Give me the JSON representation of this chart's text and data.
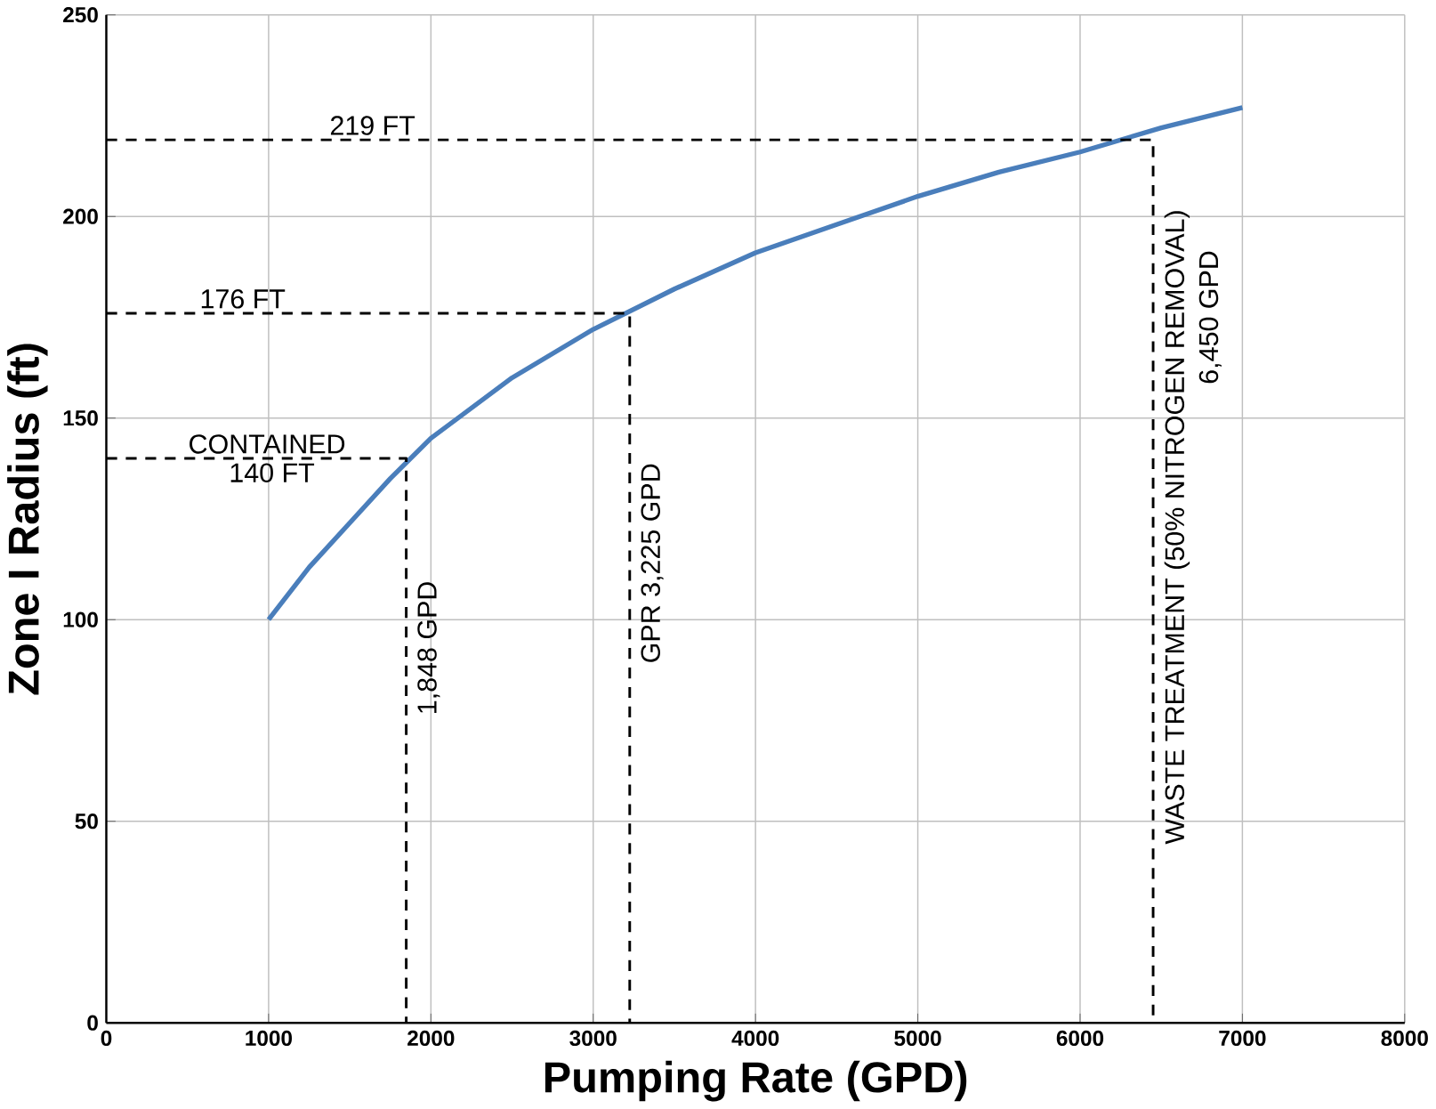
{
  "chart_data": {
    "type": "line",
    "xlabel": "Pumping Rate (GPD)",
    "ylabel": "Zone I Radius (ft)",
    "xlim": [
      0,
      8000
    ],
    "xticks": [
      0,
      1000,
      2000,
      3000,
      4000,
      5000,
      6000,
      7000,
      8000
    ],
    "ylim": [
      0,
      250
    ],
    "yticks": [
      0,
      50,
      100,
      150,
      200,
      250
    ],
    "grid": true,
    "series": [
      {
        "color": "#4a7ebb",
        "line_style": "solid",
        "x": [
          1000,
          1250,
          1500,
          1750,
          2000,
          2500,
          3000,
          3500,
          4000,
          4500,
          5000,
          5500,
          6000,
          6500,
          7000
        ],
        "values": [
          100,
          113,
          124,
          135,
          145,
          160,
          172,
          182,
          191,
          198,
          205,
          211,
          216,
          222,
          227
        ]
      },
      {
        "color": "#000000",
        "line_style": "dashed",
        "x": [
          0,
          1848,
          1848
        ],
        "values": [
          140,
          140,
          0
        ]
      },
      {
        "color": "#000000",
        "line_style": "dashed",
        "x": [
          0,
          3225,
          3225
        ],
        "values": [
          176,
          176,
          0
        ]
      },
      {
        "color": "#000000",
        "line_style": "dashed",
        "x": [
          0,
          6450,
          6450
        ],
        "values": [
          219,
          219,
          0
        ]
      }
    ],
    "annotations": [
      {
        "text": "219 FT",
        "x": 1640,
        "y": 219
      },
      {
        "text": "176 FT",
        "x": 840,
        "y": 176
      },
      {
        "text": "CONTAINED",
        "x": 990,
        "y": 140
      },
      {
        "text": "140 FT",
        "x": 1020,
        "y": 140
      },
      {
        "text": "1,848 GPD",
        "x": 1848,
        "y": 93
      },
      {
        "text": "GPR 3,225 GPD",
        "x": 3225,
        "y": 114
      },
      {
        "text": "WASTE TREATMENT (50% NITROGEN REMOVAL)",
        "x": 6450,
        "y": 123
      },
      {
        "text": "6,450 GPD",
        "x": 6450,
        "y": 175
      }
    ]
  }
}
